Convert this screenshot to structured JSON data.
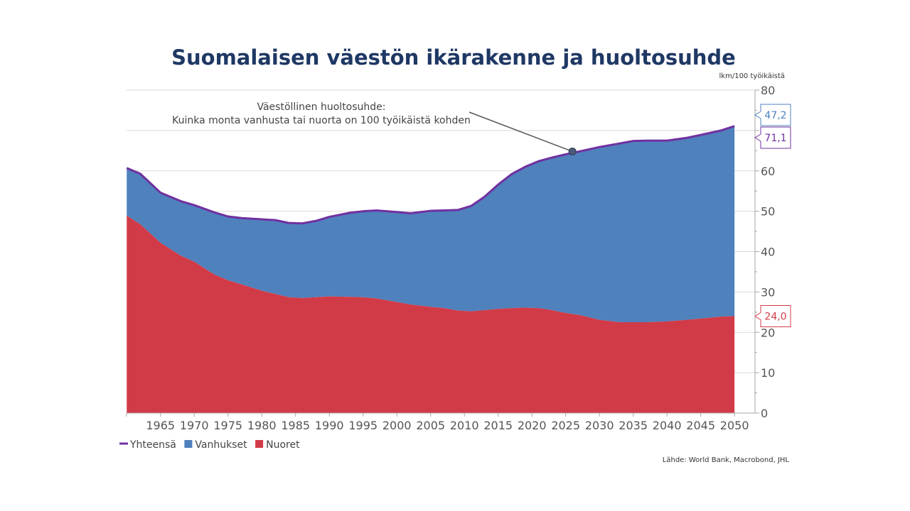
{
  "chart_data": {
    "type": "area",
    "title": "Suomalaisen väestön ikärakenne ja huoltosuhde",
    "unit_label": "lkm/100 työikäistä",
    "source": "Lähde: World Bank, Macrobond, JHL",
    "annotation": {
      "line1": "Väestöllinen huoltosuhde:",
      "line2": "Kuinka monta vanhusta tai nuorta on 100 työikäistä kohden",
      "x": 2026,
      "y": 64.8
    },
    "xlim": [
      1960,
      2052
    ],
    "ylim": [
      0,
      80
    ],
    "x_ticks": [
      1965,
      1970,
      1975,
      1980,
      1985,
      1990,
      1995,
      2000,
      2005,
      2010,
      2015,
      2020,
      2025,
      2030,
      2035,
      2040,
      2045,
      2050
    ],
    "y_ticks": [
      0,
      10,
      20,
      30,
      40,
      50,
      60,
      70,
      80
    ],
    "y_tick_labels": [
      "0",
      "10",
      "20",
      "30",
      "40",
      "50",
      "60",
      "",
      "80"
    ],
    "grid": true,
    "legend_position": "bottom-left",
    "x": [
      1960,
      1962,
      1965,
      1968,
      1970,
      1973,
      1975,
      1977,
      1980,
      1982,
      1984,
      1986,
      1988,
      1990,
      1993,
      1995,
      1997,
      2000,
      2002,
      2005,
      2007,
      2009,
      2011,
      2013,
      2015,
      2017,
      2019,
      2021,
      2023,
      2025,
      2027,
      2030,
      2033,
      2035,
      2037,
      2040,
      2043,
      2045,
      2048,
      2050
    ],
    "series": [
      {
        "name": "Yhteensä",
        "kind": "line",
        "color": "#7030a0",
        "values": [
          60.7,
          59.3,
          54.6,
          52.5,
          51.5,
          49.7,
          48.7,
          48.3,
          48.0,
          47.8,
          47.1,
          47.0,
          47.6,
          48.6,
          49.6,
          50.0,
          50.2,
          49.8,
          49.5,
          50.1,
          50.2,
          50.3,
          51.3,
          53.6,
          56.6,
          59.2,
          61.0,
          62.4,
          63.3,
          64.1,
          64.8,
          65.9,
          66.8,
          67.4,
          67.5,
          67.5,
          68.2,
          68.9,
          70.0,
          71.1
        ],
        "callout": "71,1"
      },
      {
        "name": "Vanhukset",
        "kind": "area",
        "color": "#4f81bd",
        "values": [
          11.8,
          12.5,
          12.4,
          13.5,
          14.0,
          15.4,
          15.8,
          16.4,
          17.7,
          18.3,
          18.4,
          18.5,
          18.9,
          19.7,
          20.8,
          21.3,
          21.8,
          22.3,
          22.6,
          23.8,
          24.2,
          24.9,
          26.1,
          28.1,
          30.8,
          33.2,
          34.9,
          36.4,
          37.8,
          39.3,
          40.5,
          42.8,
          44.3,
          44.9,
          45.0,
          44.8,
          45.1,
          45.5,
          46.1,
          47.2
        ],
        "callout": "47,2"
      },
      {
        "name": "Nuoret",
        "kind": "area",
        "color": "#d13b47",
        "values": [
          48.9,
          46.8,
          42.2,
          39.0,
          37.5,
          34.3,
          32.9,
          31.9,
          30.3,
          29.5,
          28.7,
          28.5,
          28.7,
          28.9,
          28.8,
          28.7,
          28.4,
          27.5,
          26.9,
          26.3,
          26.0,
          25.4,
          25.2,
          25.5,
          25.8,
          26.0,
          26.1,
          26.0,
          25.5,
          24.8,
          24.3,
          23.1,
          22.5,
          22.5,
          22.5,
          22.7,
          23.1,
          23.4,
          23.9,
          24.0
        ],
        "callout": "24,0"
      }
    ]
  }
}
